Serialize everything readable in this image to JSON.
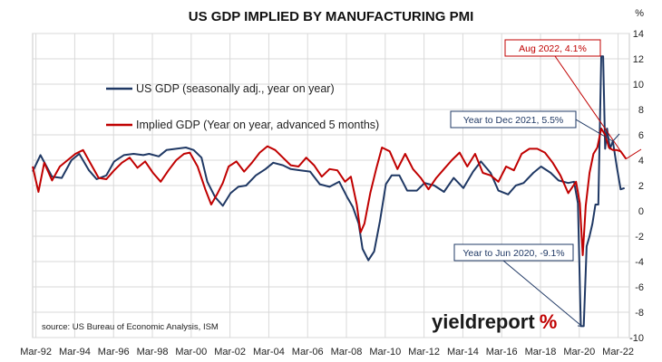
{
  "chart_data": {
    "type": "line",
    "title": "US GDP IMPLIED BY MANUFACTURING PMI",
    "ylabel": "%",
    "ylim": [
      -10,
      14
    ],
    "yticks": [
      -10,
      -8,
      -6,
      -4,
      -2,
      0,
      2,
      4,
      6,
      8,
      10,
      12,
      14
    ],
    "xlim": [
      1992.0,
      2022.75
    ],
    "xticks": [
      {
        "x": 1992.17,
        "label": "Mar-92"
      },
      {
        "x": 1994.17,
        "label": "Mar-94"
      },
      {
        "x": 1996.17,
        "label": "Mar-96"
      },
      {
        "x": 1998.17,
        "label": "Mar-98"
      },
      {
        "x": 2000.17,
        "label": "Mar-00"
      },
      {
        "x": 2002.17,
        "label": "Mar-02"
      },
      {
        "x": 2004.17,
        "label": "Mar-04"
      },
      {
        "x": 2006.17,
        "label": "Mar-06"
      },
      {
        "x": 2008.17,
        "label": "Mar-08"
      },
      {
        "x": 2010.17,
        "label": "Mar-10"
      },
      {
        "x": 2012.17,
        "label": "Mar-12"
      },
      {
        "x": 2014.17,
        "label": "Mar-14"
      },
      {
        "x": 2016.17,
        "label": "Mar-16"
      },
      {
        "x": 2018.17,
        "label": "Mar-18"
      },
      {
        "x": 2020.17,
        "label": "Mar-20"
      },
      {
        "x": 2022.17,
        "label": "Mar-22"
      }
    ],
    "grid": true,
    "legend_position": "top-left",
    "series": [
      {
        "name": "US GDP (seasonally adj., year on year)",
        "color": "#1f3864",
        "x": [
          1992.0,
          1992.4,
          1993.0,
          1993.5,
          1994.0,
          1994.4,
          1994.9,
          1995.3,
          1995.8,
          1996.2,
          1996.7,
          1997.2,
          1997.7,
          1998.0,
          1998.5,
          1998.9,
          1999.4,
          1999.9,
          2000.3,
          2000.7,
          2001.0,
          2001.4,
          2001.8,
          2002.2,
          2002.6,
          2003.0,
          2003.5,
          2004.0,
          2004.4,
          2004.9,
          2005.3,
          2005.8,
          2006.3,
          2006.8,
          2007.3,
          2007.8,
          2008.2,
          2008.5,
          2008.8,
          2009.0,
          2009.3,
          2009.6,
          2009.9,
          2010.2,
          2010.5,
          2010.9,
          2011.3,
          2011.8,
          2012.2,
          2012.7,
          2013.2,
          2013.7,
          2014.2,
          2014.7,
          2015.1,
          2015.6,
          2016.0,
          2016.5,
          2016.9,
          2017.3,
          2017.8,
          2018.2,
          2018.7,
          2019.1,
          2019.6,
          2019.9,
          2020.1,
          2020.25,
          2020.4,
          2020.55,
          2020.7,
          2020.85,
          2021.0,
          2021.15,
          2021.3,
          2021.4,
          2021.5,
          2021.6,
          2021.75,
          2021.9,
          2022.1,
          2022.3,
          2022.5
        ],
        "y": [
          3.1,
          4.4,
          2.7,
          2.6,
          4.0,
          4.5,
          3.2,
          2.5,
          2.8,
          3.9,
          4.4,
          4.5,
          4.4,
          4.5,
          4.3,
          4.8,
          4.9,
          5.0,
          4.8,
          4.2,
          2.3,
          1.1,
          0.4,
          1.4,
          1.9,
          2.0,
          2.8,
          3.3,
          3.8,
          3.6,
          3.3,
          3.2,
          3.1,
          2.1,
          1.9,
          2.3,
          1.1,
          0.3,
          -1.0,
          -3.0,
          -3.9,
          -3.2,
          -0.8,
          2.1,
          2.8,
          2.8,
          1.6,
          1.6,
          2.2,
          2.0,
          1.5,
          2.6,
          1.8,
          3.1,
          3.9,
          3.0,
          1.6,
          1.3,
          2.0,
          2.2,
          3.0,
          3.5,
          3.0,
          2.4,
          2.2,
          2.3,
          0.6,
          -9.1,
          -9.1,
          -2.8,
          -2.0,
          -1.0,
          0.5,
          0.5,
          12.2,
          12.2,
          4.9,
          6.5,
          4.9,
          5.5,
          3.5,
          1.7,
          1.8
        ]
      },
      {
        "name": "Implied GDP (Year on year, advanced 5 months)",
        "color": "#c00000",
        "x": [
          1992.0,
          1992.3,
          1992.6,
          1993.0,
          1993.4,
          1993.8,
          1994.2,
          1994.6,
          1995.0,
          1995.4,
          1995.8,
          1996.2,
          1996.6,
          1997.0,
          1997.4,
          1997.8,
          1998.2,
          1998.6,
          1999.0,
          1999.4,
          1999.8,
          2000.1,
          2000.5,
          2000.9,
          2001.2,
          2001.5,
          2001.8,
          2002.1,
          2002.5,
          2002.9,
          2003.3,
          2003.7,
          2004.1,
          2004.5,
          2004.9,
          2005.3,
          2005.7,
          2006.1,
          2006.5,
          2006.9,
          2007.3,
          2007.7,
          2008.1,
          2008.4,
          2008.7,
          2008.9,
          2009.1,
          2009.4,
          2009.7,
          2010.0,
          2010.4,
          2010.8,
          2011.2,
          2011.6,
          2012.0,
          2012.4,
          2012.8,
          2013.2,
          2013.6,
          2014.0,
          2014.4,
          2014.8,
          2015.2,
          2015.6,
          2016.0,
          2016.4,
          2016.8,
          2017.2,
          2017.6,
          2018.0,
          2018.4,
          2018.8,
          2019.2,
          2019.6,
          2020.0,
          2020.2,
          2020.35,
          2020.5,
          2020.7,
          2020.9,
          2021.1,
          2021.3,
          2021.5,
          2021.7,
          2021.9,
          2022.1,
          2022.3,
          2022.58
        ],
        "y": [
          3.5,
          1.5,
          3.8,
          2.4,
          3.5,
          4.0,
          4.5,
          4.8,
          3.7,
          2.6,
          2.5,
          3.2,
          3.8,
          4.2,
          3.4,
          3.9,
          3.0,
          2.3,
          3.2,
          4.0,
          4.5,
          4.6,
          3.5,
          1.7,
          0.5,
          1.3,
          2.2,
          3.5,
          3.9,
          3.1,
          3.8,
          4.6,
          5.1,
          4.8,
          4.2,
          3.6,
          3.5,
          4.2,
          3.6,
          2.7,
          3.3,
          3.2,
          2.3,
          2.7,
          0.5,
          -1.7,
          -1.0,
          1.4,
          3.3,
          5.0,
          4.7,
          3.3,
          4.5,
          3.3,
          2.6,
          1.7,
          2.6,
          3.3,
          4.0,
          4.6,
          3.5,
          4.5,
          3.0,
          2.8,
          2.3,
          3.5,
          3.2,
          4.5,
          4.9,
          4.9,
          4.6,
          3.8,
          2.8,
          1.4,
          2.3,
          0.6,
          -3.5,
          0.4,
          3.0,
          4.5,
          5.0,
          6.5,
          6.0,
          5.0,
          4.8,
          4.8,
          4.7,
          4.1
        ]
      }
    ],
    "annotations": [
      {
        "text": "Aug 2022, 4.1%",
        "x": 2022.58,
        "y": 4.1,
        "color": "#c00000"
      },
      {
        "text": "Year to Dec 2021, 5.5%",
        "x": 2021.9,
        "y": 5.5,
        "color": "#1f3864"
      },
      {
        "text": "Year to Jun 2020, -9.1%",
        "x": 2020.3,
        "y": -9.1,
        "color": "#1f3864"
      }
    ],
    "source": "source: US Bureau of Economic Analysis, ISM",
    "logo": {
      "main": "yieldreport",
      "pct": "%",
      "pct_color": "#c00000"
    }
  }
}
